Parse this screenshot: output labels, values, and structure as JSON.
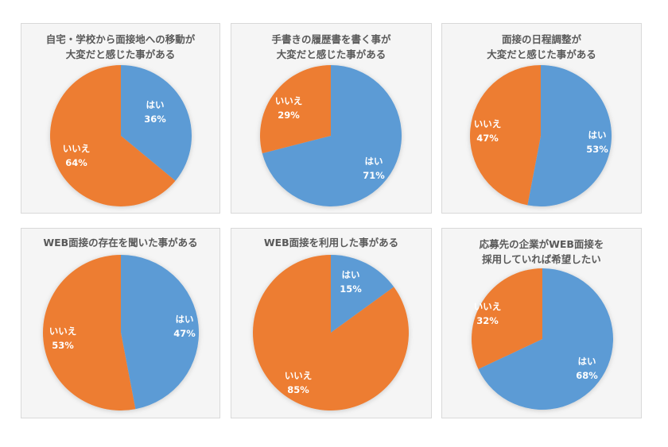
{
  "colors": {
    "yes": "#5B9BD5",
    "no": "#ED7D31",
    "panel_bg": "#F5F5F5",
    "panel_border": "#D9D9D9",
    "title": "#595959"
  },
  "chart_data": [
    {
      "type": "pie",
      "title": "自宅・学校から面接地への移動が大変だと感じた事がある",
      "title_lines": [
        "自宅・学校から面接地への移動が",
        "大変だと感じた事がある"
      ],
      "categories": [
        "はい",
        "いいえ"
      ],
      "values": [
        36,
        64
      ],
      "labels": [
        "36%",
        "64%"
      ]
    },
    {
      "type": "pie",
      "title": "手書きの履歴書を書く事が大変だと感じた事がある",
      "title_lines": [
        "手書きの履歴書を書く事が",
        "大変だと感じた事がある"
      ],
      "categories": [
        "はい",
        "いいえ"
      ],
      "values": [
        71,
        29
      ],
      "labels": [
        "71%",
        "29%"
      ]
    },
    {
      "type": "pie",
      "title": "面接の日程調整が大変だと感じた事がある",
      "title_lines": [
        "面接の日程調整が",
        "大変だと感じた事がある"
      ],
      "categories": [
        "はい",
        "いいえ"
      ],
      "values": [
        53,
        47
      ],
      "labels": [
        "53%",
        "47%"
      ]
    },
    {
      "type": "pie",
      "title": "WEB面接の存在を聞いた事がある",
      "title_lines": [
        "WEB面接の存在を聞いた事がある"
      ],
      "categories": [
        "はい",
        "いいえ"
      ],
      "values": [
        47,
        53
      ],
      "labels": [
        "47%",
        "53%"
      ]
    },
    {
      "type": "pie",
      "title": "WEB面接を利用した事がある",
      "title_lines": [
        "WEB面接を利用した事がある"
      ],
      "categories": [
        "はい",
        "いいえ"
      ],
      "values": [
        15,
        85
      ],
      "labels": [
        "15%",
        "85%"
      ]
    },
    {
      "type": "pie",
      "title": "応募先の企業がWEB面接を採用していれば希望したい",
      "title_lines": [
        "応募先の企業がWEB面接を",
        "採用していれば希望したい"
      ],
      "categories": [
        "はい",
        "いいえ"
      ],
      "values": [
        68,
        32
      ],
      "labels": [
        "68%",
        "32%"
      ]
    }
  ]
}
